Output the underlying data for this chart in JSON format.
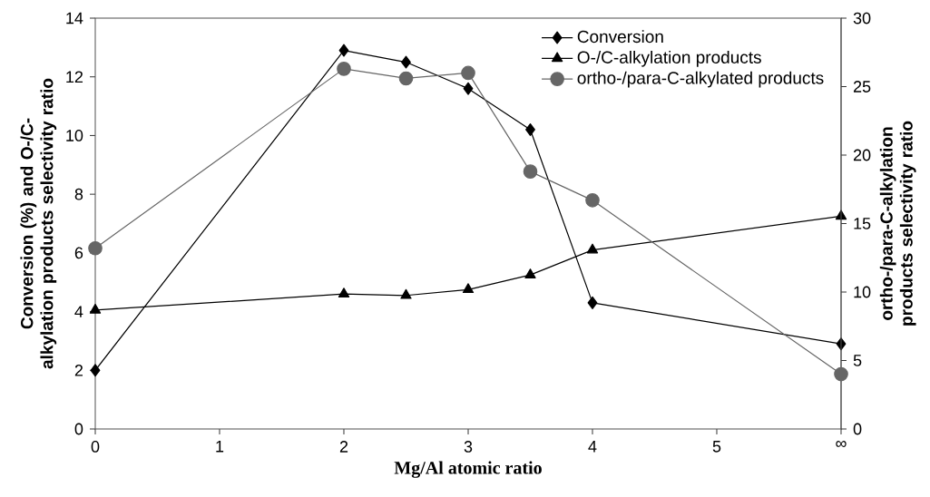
{
  "chart_data": {
    "type": "line",
    "xlabel": "Mg/Al atomic ratio",
    "ylabel": "Conversion (%) and O-/C-alkylation products selectivity ratio",
    "y2label": "ortho-/para-C-alkylation products selectivity ratio",
    "x": [
      0,
      2,
      2.5,
      3,
      3.5,
      4,
      6
    ],
    "series": [
      {
        "name": "Conversion",
        "color": "#000000",
        "marker": "diamond",
        "values": [
          2.0,
          12.9,
          12.5,
          11.6,
          10.2,
          4.3,
          2.9
        ]
      },
      {
        "name": "O-/C-alkylation products",
        "color": "#000000",
        "marker": "triangle",
        "values": [
          4.05,
          4.6,
          4.55,
          4.75,
          5.25,
          6.1,
          7.25
        ]
      },
      {
        "name": "ortho-/para-C-alkylated products",
        "color": "#666666",
        "marker": "circle",
        "axis": "y2",
        "values": [
          13.2,
          26.3,
          25.6,
          26.0,
          18.8,
          16.7,
          4.0
        ]
      }
    ],
    "xlim": [
      0,
      6
    ],
    "xticks": [
      0,
      1,
      2,
      3,
      4,
      5,
      {
        "value": 6,
        "label": "∞"
      }
    ],
    "ylim": [
      0,
      14
    ],
    "yticks": [
      0,
      2,
      4,
      6,
      8,
      10,
      12,
      14
    ],
    "y2lim": [
      0,
      30
    ],
    "y2ticks": [
      0,
      5,
      10,
      15,
      20,
      25,
      30
    ],
    "legend": "top right"
  }
}
